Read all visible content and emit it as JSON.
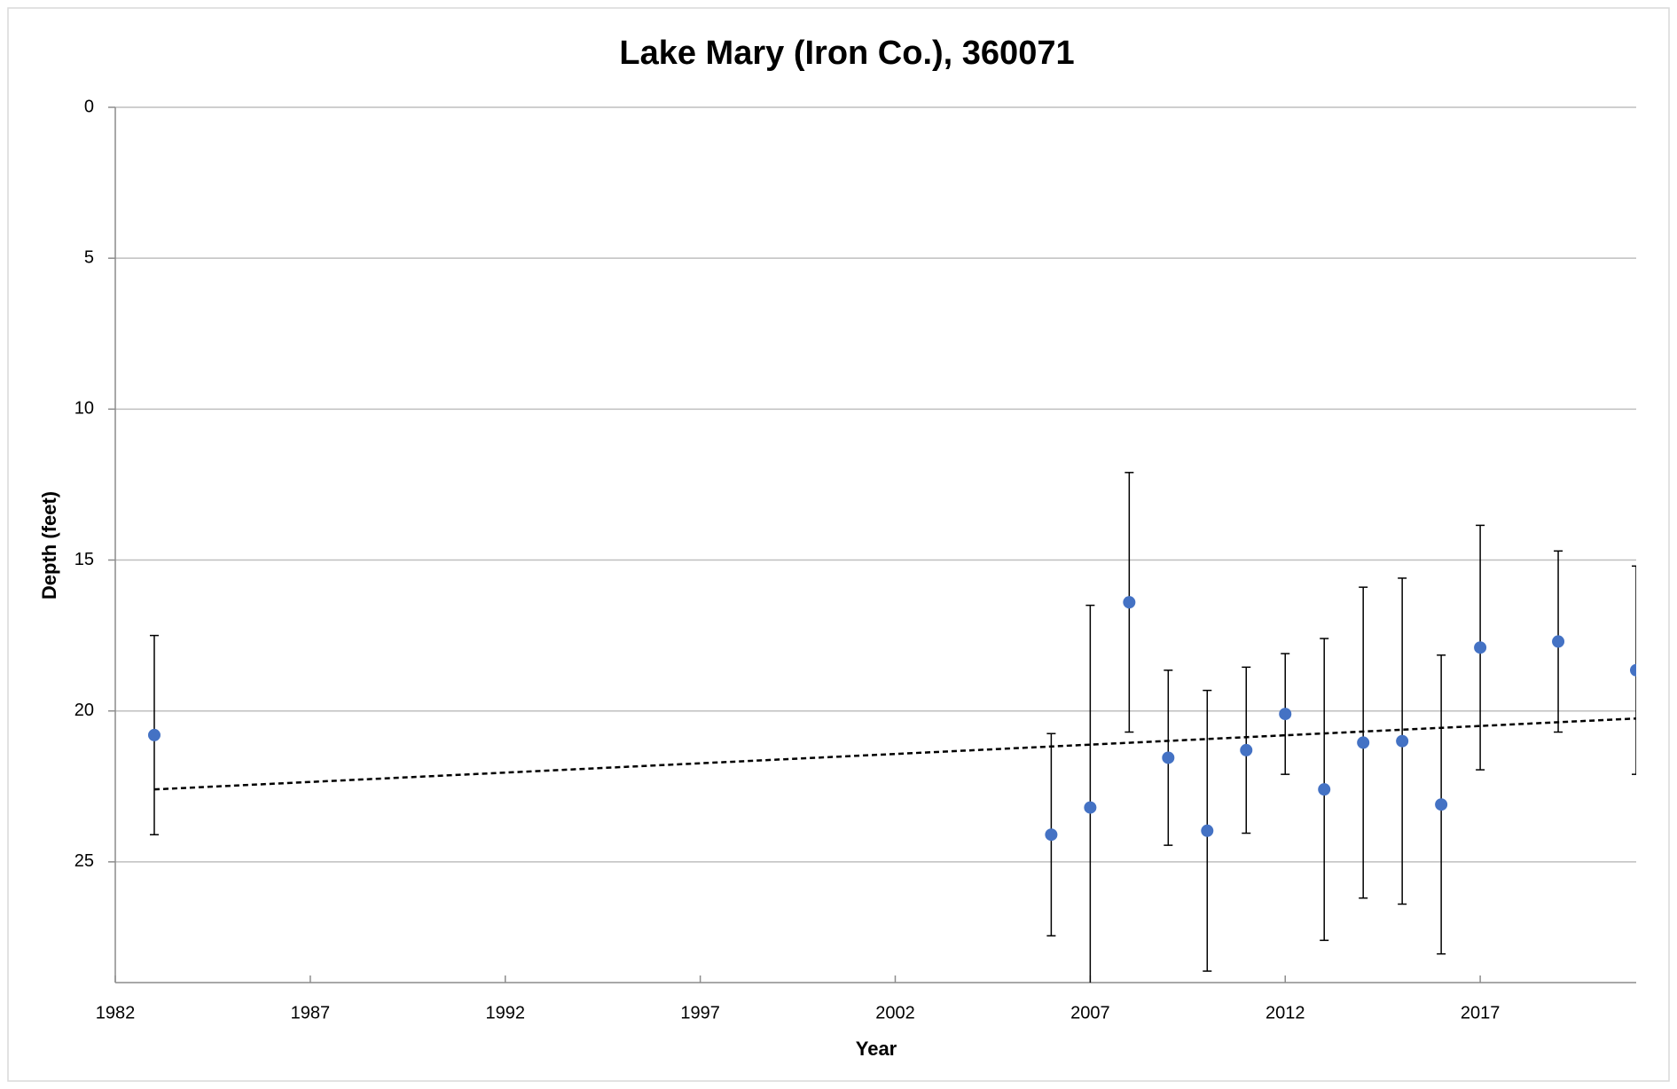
{
  "chart_data": {
    "type": "scatter",
    "title": "Lake Mary (Iron Co.), 360071",
    "xlabel": "Year",
    "ylabel": "Depth (feet)",
    "x": [
      1983,
      2006,
      2007,
      2008,
      2009,
      2010,
      2011,
      2012,
      2013,
      2014,
      2015,
      2016,
      2017,
      2019,
      2021
    ],
    "values": [
      20.8,
      24.1,
      23.2,
      16.4,
      21.55,
      23.97,
      21.3,
      20.1,
      22.6,
      21.05,
      21.0,
      23.1,
      17.9,
      17.7,
      18.65
    ],
    "errors": [
      3.3,
      3.35,
      6.7,
      4.3,
      2.9,
      4.65,
      2.75,
      2.0,
      5.0,
      5.15,
      5.4,
      4.95,
      4.05,
      3.0,
      3.45
    ],
    "color": "#4472c4",
    "error_color": "#000000",
    "trendline": {
      "x": [
        1983,
        2021
      ],
      "values": [
        22.6,
        20.25
      ],
      "color": "#000000"
    },
    "xlim": [
      1982,
      2021
    ],
    "xticks": [
      1982,
      1987,
      1992,
      1997,
      2002,
      2007,
      2012,
      2017
    ],
    "ylim": [
      0,
      29
    ],
    "yticks": [
      0,
      5,
      10,
      15,
      20,
      25
    ],
    "y_inverted": true,
    "grid": true
  }
}
